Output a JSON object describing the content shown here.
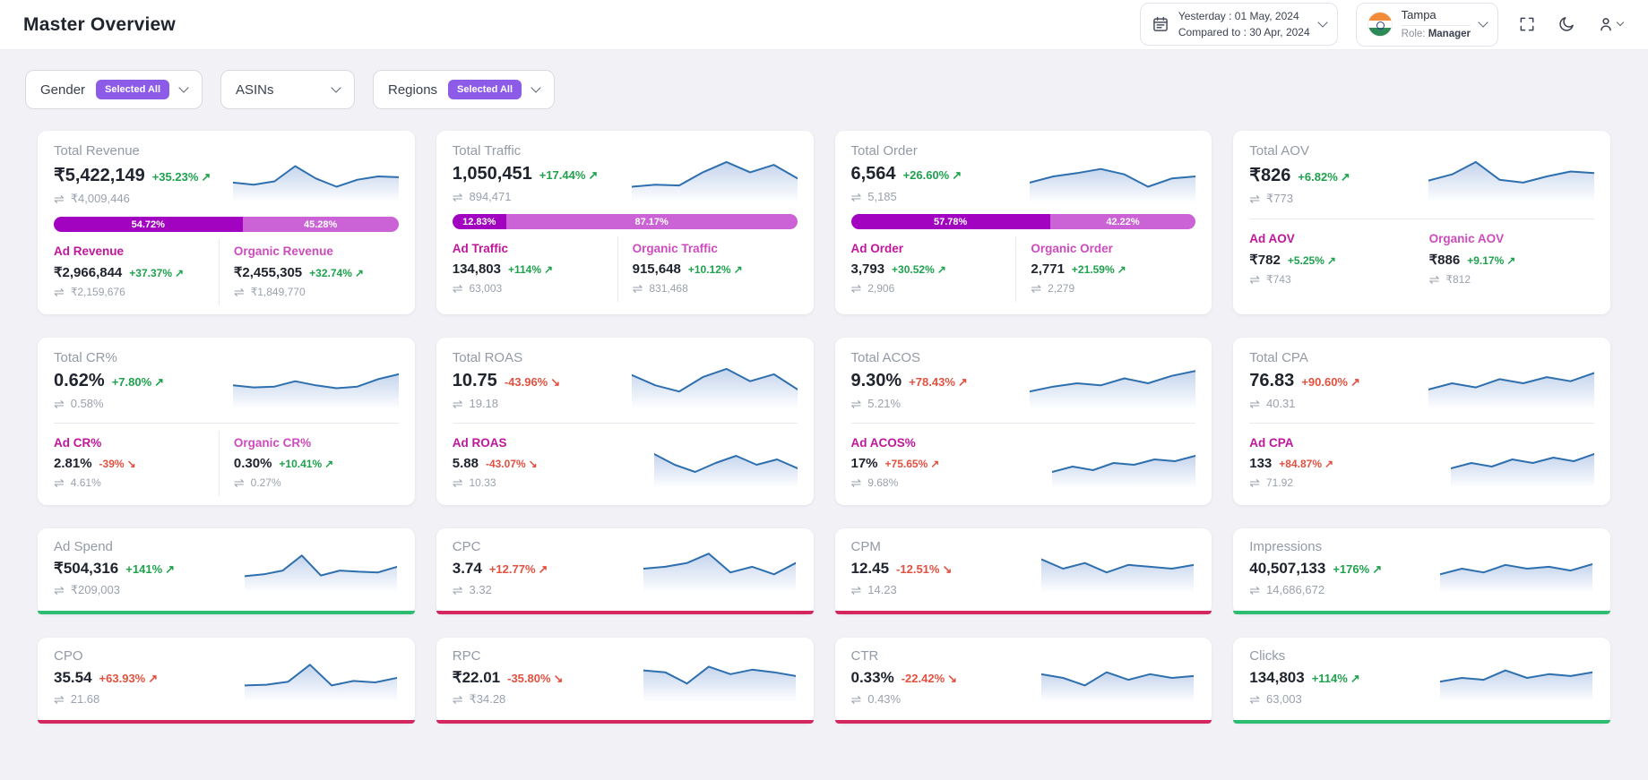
{
  "header": {
    "title": "Master Overview",
    "date_picker": {
      "line1": "Yesterday : 01 May, 2024",
      "line2": "Compared to : 30 Apr, 2024"
    },
    "profile": {
      "name": "Tampa",
      "role_label": "Role:",
      "role_value": "Manager"
    }
  },
  "filters": [
    {
      "label": "Gender",
      "badge": "Selected All"
    },
    {
      "label": "ASINs",
      "badge": null
    },
    {
      "label": "Regions",
      "badge": "Selected All"
    }
  ],
  "icons": {
    "compare_glyph": "⇌",
    "up_arrow": "↗",
    "down_arrow": "↘"
  },
  "colors": {
    "page_bg": "#f1f1f6",
    "green": "#1ea24d",
    "red": "#e25140",
    "bar_dark": "#a103c1",
    "bar_light": "#cb63d6",
    "badge": "#8c5be8",
    "accent_green": "#2cbd70",
    "accent_red": "#d5275f",
    "ad_label": "#c0169c",
    "organic_label": "#cd4cbd",
    "spark_stroke": "#2e6fae"
  },
  "cards": [
    {
      "id": "total-revenue",
      "title": "Total Revenue",
      "value": "₹5,422,149",
      "change": "+35.23%",
      "dir": "up",
      "tone": "green",
      "compare": "₹4,009,446",
      "spark": [
        0.35,
        0.3,
        0.38,
        0.75,
        0.45,
        0.25,
        0.42,
        0.5,
        0.48
      ],
      "bar": {
        "left_label": "54.72%",
        "left_pct": 54.72,
        "right_label": "45.28%",
        "right_pct": 45.28
      },
      "subs_layout": "two",
      "col_divider": true,
      "subs": [
        {
          "kind": "ad",
          "title": "Ad Revenue",
          "value": "₹2,966,844",
          "change": "+37.37%",
          "dir": "up",
          "tone": "green",
          "compare": "₹2,159,676"
        },
        {
          "kind": "organic",
          "title": "Organic Revenue",
          "value": "₹2,455,305",
          "change": "+32.74%",
          "dir": "up",
          "tone": "green",
          "compare": "₹1,849,770"
        }
      ]
    },
    {
      "id": "total-traffic",
      "title": "Total Traffic",
      "value": "1,050,451",
      "change": "+17.44%",
      "dir": "up",
      "tone": "green",
      "compare": "894,471",
      "spark": [
        0.25,
        0.3,
        0.28,
        0.6,
        0.85,
        0.6,
        0.78,
        0.45
      ],
      "bar": {
        "left_label": "12.83%",
        "left_pct": 12.83,
        "right_label": "87.17%",
        "right_pct": 87.17
      },
      "subs_layout": "two",
      "col_divider": true,
      "subs": [
        {
          "kind": "ad",
          "title": "Ad Traffic",
          "value": "134,803",
          "change": "+114%",
          "dir": "up",
          "tone": "green",
          "compare": "63,003"
        },
        {
          "kind": "organic",
          "title": "Organic Traffic",
          "value": "915,648",
          "change": "+10.12%",
          "dir": "up",
          "tone": "green",
          "compare": "831,468"
        }
      ]
    },
    {
      "id": "total-order",
      "title": "Total Order",
      "value": "6,564",
      "change": "+26.60%",
      "dir": "up",
      "tone": "green",
      "compare": "5,185",
      "spark": [
        0.35,
        0.5,
        0.58,
        0.68,
        0.55,
        0.25,
        0.45,
        0.5
      ],
      "bar": {
        "left_label": "57.78%",
        "left_pct": 57.78,
        "right_label": "42.22%",
        "right_pct": 42.22
      },
      "subs_layout": "two",
      "col_divider": true,
      "subs": [
        {
          "kind": "ad",
          "title": "Ad Order",
          "value": "3,793",
          "change": "+30.52%",
          "dir": "up",
          "tone": "green",
          "compare": "2,906"
        },
        {
          "kind": "organic",
          "title": "Organic Order",
          "value": "2,771",
          "change": "+21.59%",
          "dir": "up",
          "tone": "green",
          "compare": "2,279"
        }
      ]
    },
    {
      "id": "total-aov",
      "title": "Total AOV",
      "value": "₹826",
      "change": "+6.82%",
      "dir": "up",
      "tone": "green",
      "compare": "₹773",
      "spark": [
        0.4,
        0.55,
        0.85,
        0.42,
        0.35,
        0.5,
        0.62,
        0.58
      ],
      "divider": true,
      "subs_layout": "two",
      "col_divider": false,
      "subs": [
        {
          "kind": "ad",
          "title": "Ad AOV",
          "value": "₹782",
          "change": "+5.25%",
          "dir": "up",
          "tone": "green",
          "compare": "₹743"
        },
        {
          "kind": "organic",
          "title": "Organic AOV",
          "value": "₹886",
          "change": "+9.17%",
          "dir": "up",
          "tone": "green",
          "compare": "₹812"
        }
      ]
    },
    {
      "id": "total-cr",
      "title": "Total CR%",
      "value": "0.62%",
      "change": "+7.80%",
      "dir": "up",
      "tone": "green",
      "compare": "0.58%",
      "spark": [
        0.45,
        0.4,
        0.42,
        0.55,
        0.45,
        0.38,
        0.42,
        0.6,
        0.72
      ],
      "divider": true,
      "subs_layout": "two",
      "col_divider": true,
      "subs": [
        {
          "kind": "ad",
          "title": "Ad CR%",
          "value": "2.81%",
          "change": "-39%",
          "dir": "down",
          "tone": "red",
          "compare": "4.61%"
        },
        {
          "kind": "organic",
          "title": "Organic CR%",
          "value": "0.30%",
          "change": "+10.41%",
          "dir": "up",
          "tone": "green",
          "compare": "0.27%"
        }
      ]
    },
    {
      "id": "total-roas",
      "title": "Total ROAS",
      "value": "10.75",
      "change": "-43.96%",
      "dir": "down",
      "tone": "red",
      "compare": "19.18",
      "spark": [
        0.7,
        0.45,
        0.3,
        0.65,
        0.85,
        0.55,
        0.72,
        0.35
      ],
      "divider": true,
      "subs_layout": "full",
      "subs": [
        {
          "kind": "ad",
          "title": "Ad ROAS",
          "value": "5.88",
          "change": "-43.07%",
          "dir": "down",
          "tone": "red",
          "compare": "10.33",
          "spark": [
            0.8,
            0.5,
            0.3,
            0.55,
            0.75,
            0.5,
            0.65,
            0.4
          ]
        }
      ]
    },
    {
      "id": "total-acos",
      "title": "Total ACOS",
      "value": "9.30%",
      "change": "+78.43%",
      "dir": "up",
      "tone": "red",
      "compare": "5.21%",
      "spark": [
        0.3,
        0.42,
        0.5,
        0.45,
        0.62,
        0.5,
        0.68,
        0.8
      ],
      "divider": true,
      "subs_layout": "full",
      "subs": [
        {
          "kind": "ad",
          "title": "Ad ACOS%",
          "value": "17%",
          "change": "+75.65%",
          "dir": "up",
          "tone": "red",
          "compare": "9.68%",
          "spark": [
            0.3,
            0.45,
            0.35,
            0.55,
            0.5,
            0.65,
            0.6,
            0.75
          ]
        }
      ]
    },
    {
      "id": "total-cpa",
      "title": "Total CPA",
      "value": "76.83",
      "change": "+90.60%",
      "dir": "up",
      "tone": "red",
      "compare": "40.31",
      "spark": [
        0.35,
        0.5,
        0.4,
        0.6,
        0.5,
        0.65,
        0.55,
        0.75
      ],
      "divider": true,
      "subs_layout": "full",
      "subs": [
        {
          "kind": "ad",
          "title": "Ad CPA",
          "value": "133",
          "change": "+84.87%",
          "dir": "up",
          "tone": "red",
          "compare": "71.92",
          "spark": [
            0.4,
            0.55,
            0.45,
            0.65,
            0.55,
            0.7,
            0.6,
            0.8
          ]
        }
      ]
    },
    {
      "id": "ad-spend",
      "title": "Ad Spend",
      "value": "₹504,316",
      "change": "+141%",
      "dir": "up",
      "tone": "green",
      "compare": "₹209,003",
      "size": "small",
      "accent": "green",
      "spark": [
        0.3,
        0.35,
        0.45,
        0.85,
        0.32,
        0.45,
        0.42,
        0.4,
        0.55
      ]
    },
    {
      "id": "cpc",
      "title": "CPC",
      "value": "3.74",
      "change": "+12.77%",
      "dir": "up",
      "tone": "red",
      "compare": "3.32",
      "size": "small",
      "accent": "red",
      "spark": [
        0.5,
        0.55,
        0.65,
        0.9,
        0.4,
        0.55,
        0.35,
        0.65
      ]
    },
    {
      "id": "cpm",
      "title": "CPM",
      "value": "12.45",
      "change": "-12.51%",
      "dir": "down",
      "tone": "red",
      "compare": "14.23",
      "size": "small",
      "accent": "red",
      "spark": [
        0.75,
        0.5,
        0.65,
        0.4,
        0.6,
        0.55,
        0.5,
        0.6
      ]
    },
    {
      "id": "impressions",
      "title": "Impressions",
      "value": "40,507,133",
      "change": "+176%",
      "dir": "up",
      "tone": "green",
      "compare": "14,686,672",
      "size": "small",
      "accent": "green",
      "spark": [
        0.35,
        0.5,
        0.4,
        0.6,
        0.5,
        0.55,
        0.45,
        0.62
      ]
    },
    {
      "id": "cpo",
      "title": "CPO",
      "value": "35.54",
      "change": "+63.93%",
      "dir": "up",
      "tone": "red",
      "compare": "21.68",
      "size": "small",
      "accent": "red",
      "spark": [
        0.3,
        0.32,
        0.4,
        0.85,
        0.3,
        0.42,
        0.38,
        0.5
      ]
    },
    {
      "id": "rpc",
      "title": "RPC",
      "value": "₹22.01",
      "change": "-35.80%",
      "dir": "down",
      "tone": "red",
      "compare": "₹34.28",
      "size": "small",
      "accent": "red",
      "spark": [
        0.7,
        0.65,
        0.35,
        0.8,
        0.6,
        0.72,
        0.65,
        0.55
      ]
    },
    {
      "id": "ctr",
      "title": "CTR",
      "value": "0.33%",
      "change": "-22.42%",
      "dir": "down",
      "tone": "red",
      "compare": "0.43%",
      "size": "small",
      "accent": "red",
      "spark": [
        0.6,
        0.5,
        0.3,
        0.65,
        0.45,
        0.6,
        0.5,
        0.55
      ]
    },
    {
      "id": "clicks",
      "title": "Clicks",
      "value": "134,803",
      "change": "+114%",
      "dir": "up",
      "tone": "green",
      "compare": "63,003",
      "size": "small",
      "accent": "green",
      "spark": [
        0.4,
        0.5,
        0.45,
        0.7,
        0.5,
        0.6,
        0.55,
        0.65
      ]
    }
  ]
}
